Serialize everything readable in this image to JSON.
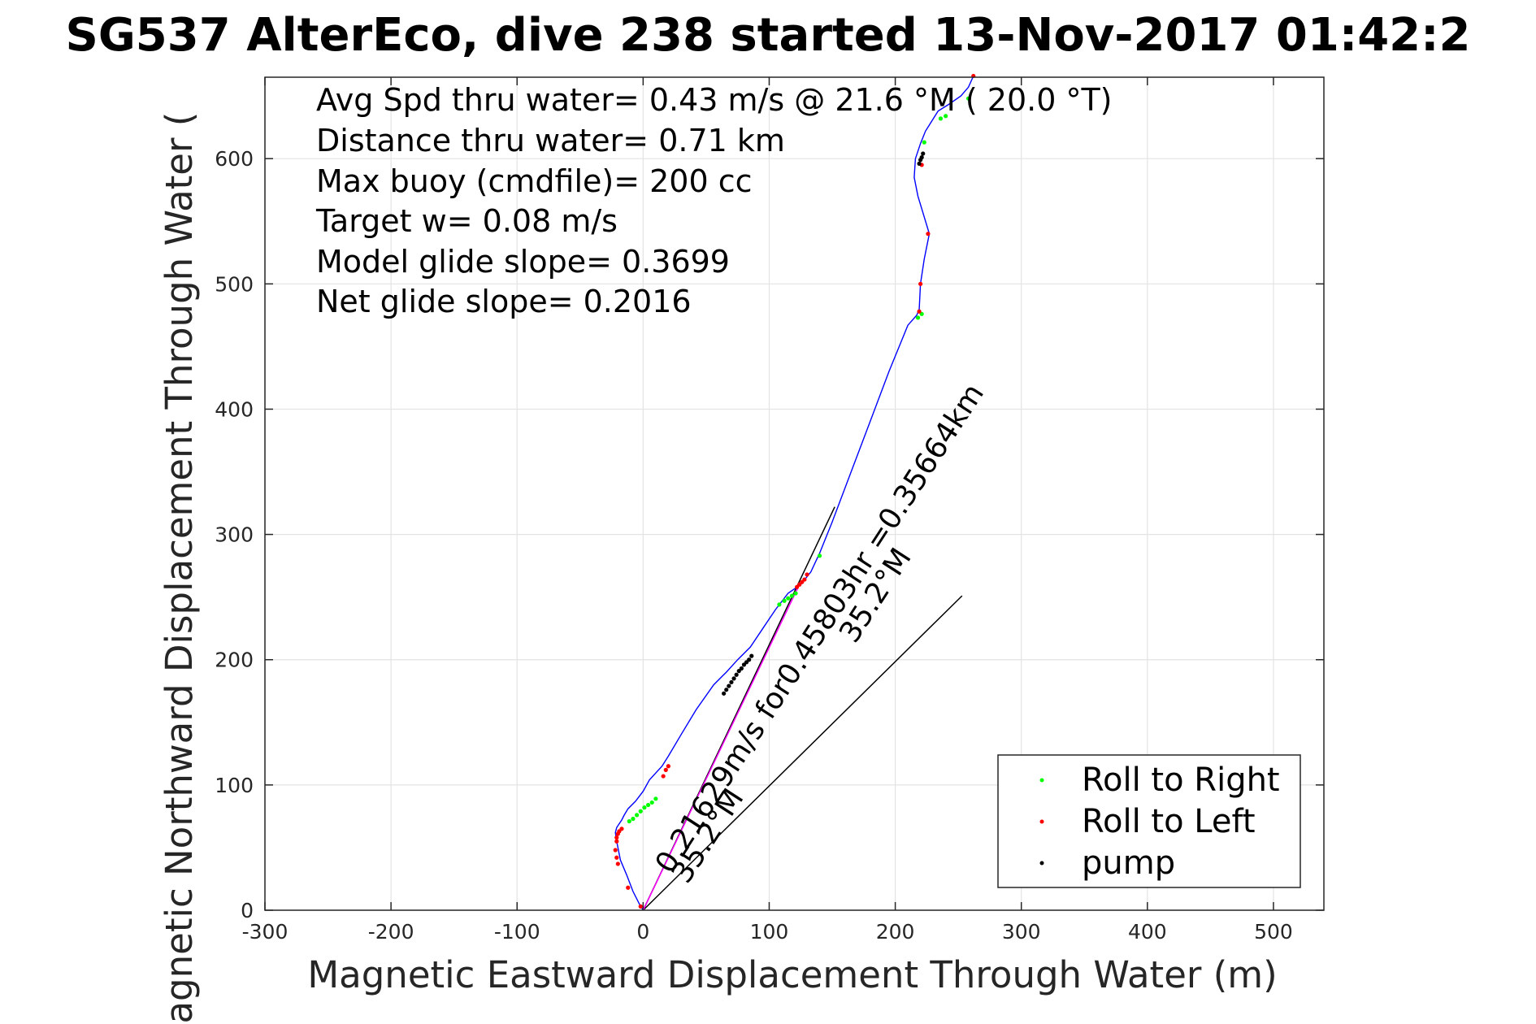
{
  "chart_data": {
    "type": "line",
    "title": "SG537 AlterEco, dive 238 started 13-Nov-2017 01:42:2",
    "xlabel": "Magnetic Eastward Displacement Through Water (m)",
    "ylabel": "Magnetic Northward Displacement Through Water (",
    "xlim": [
      -300,
      540
    ],
    "ylim": [
      0,
      665
    ],
    "x_ticks": [
      -300,
      -200,
      -100,
      0,
      100,
      200,
      300,
      400,
      500
    ],
    "x_tick_labels": [
      "-300",
      "-200",
      "-100",
      "0",
      "100",
      "200",
      "300",
      "400",
      "500"
    ],
    "y_ticks": [
      0,
      100,
      200,
      300,
      400,
      500,
      600
    ],
    "y_tick_labels": [
      "0",
      "100",
      "200",
      "300",
      "400",
      "500",
      "600"
    ],
    "grid": true,
    "legend_position": "bottom-right",
    "info_lines": [
      "Avg Spd thru water=  0.43 m/s @  21.6 °M ( 20.0 °T)",
      "Distance thru water=  0.71 km",
      "Max buoy (cmdfile)= 200 cc",
      "Target w= 0.08 m/s",
      "Model glide slope= 0.3699",
      "Net glide slope= 0.2016"
    ],
    "track": {
      "color": "#0000ff",
      "x": [
        0,
        -3,
        -8,
        -13,
        -18,
        -21,
        -22,
        -21,
        -19,
        -17,
        -15,
        -12,
        -6,
        0,
        5,
        15,
        20,
        30,
        42,
        56,
        66,
        75,
        85,
        95,
        105,
        115,
        125,
        133,
        140,
        150,
        165,
        180,
        195,
        210,
        217,
        219,
        220,
        223,
        227,
        218,
        215,
        216,
        220,
        224,
        229,
        234,
        242,
        252,
        258,
        262
      ],
      "y": [
        0,
        5,
        15,
        28,
        40,
        55,
        62,
        66,
        69,
        72,
        76,
        81,
        87,
        95,
        104,
        115,
        123,
        140,
        160,
        180,
        190,
        200,
        210,
        225,
        240,
        253,
        260,
        270,
        285,
        310,
        350,
        390,
        430,
        467,
        475,
        480,
        500,
        520,
        540,
        570,
        585,
        600,
        612,
        622,
        630,
        638,
        643,
        650,
        657,
        666
      ]
    },
    "series": [
      {
        "name": "Roll to Right",
        "color": "#00ff00",
        "x": [
          -11,
          -8,
          -5,
          -2,
          1,
          4,
          7,
          10,
          108,
          112,
          115,
          118,
          121,
          140,
          218,
          221,
          223,
          236,
          240,
          258
        ],
        "y": [
          71,
          73,
          76,
          79,
          82,
          84,
          86,
          89,
          244,
          247,
          249,
          251,
          253,
          283,
          473,
          476,
          613,
          632,
          634,
          648
        ]
      },
      {
        "name": "Roll to Left",
        "color": "#ff0000",
        "x": [
          -2,
          -12,
          -20,
          -21,
          -22,
          -21,
          -21,
          -20,
          -19,
          -17,
          16,
          18,
          20,
          122,
          124,
          126,
          128,
          130,
          219,
          220,
          221,
          226,
          262
        ],
        "y": [
          3,
          18,
          37,
          42,
          48,
          55,
          58,
          61,
          63,
          65,
          107,
          112,
          115,
          258,
          260,
          262,
          264,
          268,
          478,
          500,
          595,
          540,
          666
        ]
      },
      {
        "name": "pump",
        "color": "#000000",
        "x": [
          64,
          66,
          68,
          70,
          72,
          74,
          76,
          78,
          80,
          82,
          84,
          86,
          219,
          220,
          221,
          222
        ],
        "y": [
          173,
          176,
          179,
          182,
          185,
          188,
          191,
          193,
          196,
          198,
          200,
          203,
          596,
          599,
          601,
          604
        ]
      }
    ],
    "annotations": [
      {
        "type": "line",
        "x": [
          0,
          152
        ],
        "y": [
          0,
          322
        ]
      },
      {
        "type": "line",
        "x": [
          0,
          253
        ],
        "y": [
          0,
          251
        ]
      },
      {
        "type": "line",
        "color": "#ff00ff",
        "x": [
          0,
          124
        ],
        "y": [
          0,
          260
        ]
      },
      {
        "type": "text",
        "text": "0.21629m/s for0.45803hr =0.35664km",
        "x": 22,
        "y": 28,
        "angle": -57
      },
      {
        "type": "text",
        "text": "35.2°M",
        "x": 35,
        "y": 20,
        "angle": -57
      },
      {
        "type": "text",
        "text": "35.2°M",
        "x": 168,
        "y": 212,
        "angle": -57
      }
    ]
  }
}
